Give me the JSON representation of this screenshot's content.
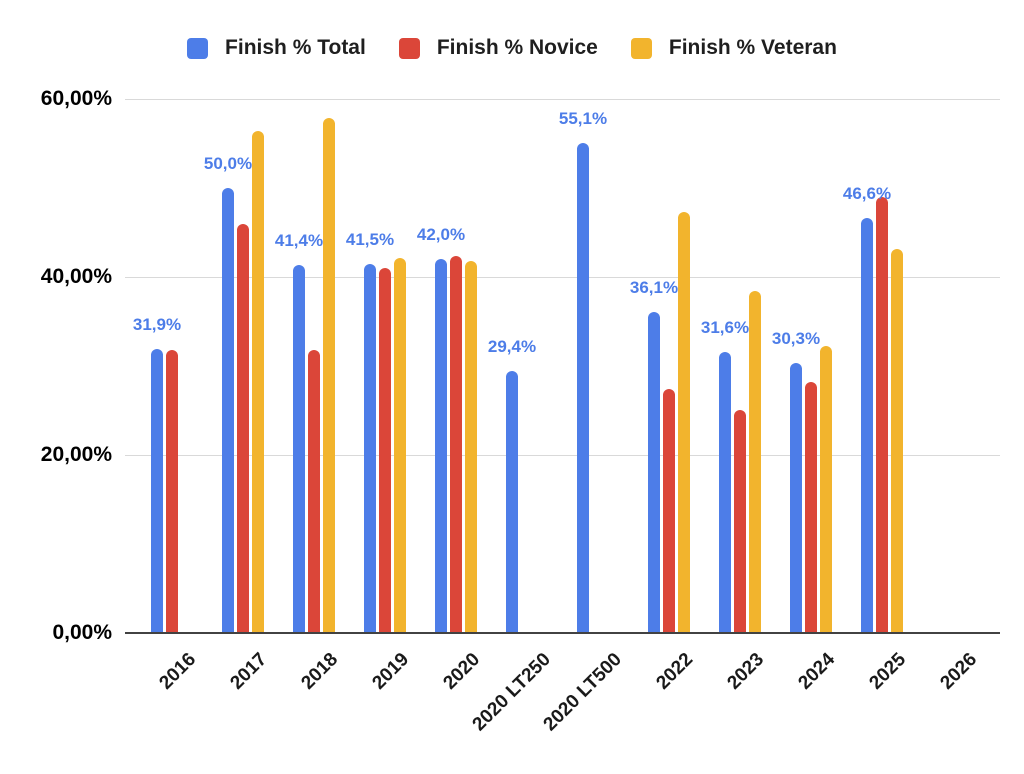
{
  "chart_data": {
    "type": "bar",
    "title": "",
    "legend_position": "top",
    "grid": true,
    "background_color": "#ffffff",
    "categories": [
      "2016",
      "2017",
      "2018",
      "2019",
      "2020",
      "2020 LT250",
      "2020 LT500",
      "2022",
      "2023",
      "2024",
      "2025",
      "2026"
    ],
    "series": [
      {
        "name": "Finish % Total",
        "color": "#4d7de8",
        "values": [
          31.9,
          50.0,
          41.4,
          41.5,
          42.0,
          29.4,
          55.1,
          36.1,
          31.6,
          30.3,
          46.6,
          null
        ]
      },
      {
        "name": "Finish % Novice",
        "color": "#db4639",
        "values": [
          31.8,
          45.9,
          31.8,
          41.0,
          42.4,
          null,
          null,
          27.4,
          25.1,
          28.2,
          49.0,
          null
        ]
      },
      {
        "name": "Finish % Veteran",
        "color": "#f2b42d",
        "values": [
          null,
          56.4,
          57.9,
          42.1,
          41.8,
          null,
          null,
          47.3,
          38.4,
          32.2,
          43.1,
          null
        ]
      }
    ],
    "data_labels": {
      "series": "Finish % Total",
      "color": "#4d7de8",
      "values": [
        "31,9%",
        "50,0%",
        "41,4%",
        "41,5%",
        "42,0%",
        "29,4%",
        "55,1%",
        "36,1%",
        "31,6%",
        "30,3%",
        "46,6%",
        ""
      ]
    },
    "y_axis": {
      "min": 0,
      "max": 60,
      "tick_values": [
        0,
        20,
        40,
        60
      ],
      "ticks": [
        "0,00%",
        "20,00%",
        "40,00%",
        "60,00%"
      ],
      "number_format": "comma-decimal percent"
    },
    "x_axis": {
      "label_rotation_deg": -45
    }
  },
  "styles": {
    "gridline_color": "#d9d9d9",
    "axis_line_color": "#424242",
    "axis_text_color": "#000000",
    "x_label_color": "#1a1a1a",
    "legend_text_color": "#1f1f1f"
  }
}
